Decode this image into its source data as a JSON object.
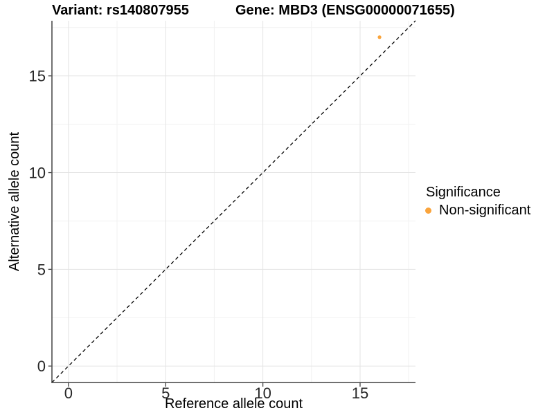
{
  "titles": {
    "variant": "Variant: rs140807955",
    "gene": "Gene: MBD3 (ENSG00000071655)"
  },
  "legend": {
    "title": "Significance",
    "items": [
      {
        "label": "Non-significant",
        "color": "#FAA43C"
      }
    ]
  },
  "colors": {
    "point_nonsignificant": "#FAA43C",
    "identity_line": "#000000",
    "axis_line": "#404040",
    "tick_label": "#262626",
    "grid_major": "#E3E3E3",
    "grid_minor": "#F1F1F1",
    "background": "#FFFFFF"
  },
  "chart_data": {
    "type": "scatter",
    "title_left": "Variant: rs140807955",
    "title_right": "Gene: MBD3 (ENSG00000071655)",
    "xlabel": "Reference allele count",
    "ylabel": "Alternative allele count",
    "xlim": [
      -0.85,
      17.85
    ],
    "ylim": [
      -0.85,
      17.85
    ],
    "x_ticks": [
      0,
      5,
      10,
      15
    ],
    "y_ticks": [
      0,
      5,
      10,
      15
    ],
    "x_minor_ticks": [
      2.5,
      7.5,
      12.5,
      17.5
    ],
    "y_minor_ticks": [
      2.5,
      7.5,
      12.5,
      17.5
    ],
    "grid": true,
    "legend_position": "right",
    "reference_line": {
      "type": "identity",
      "slope": 1,
      "intercept": 0,
      "style": "dashed"
    },
    "series": [
      {
        "name": "Non-significant",
        "color": "#FAA43C",
        "points": [
          {
            "x": 16,
            "y": 17
          }
        ]
      }
    ]
  }
}
